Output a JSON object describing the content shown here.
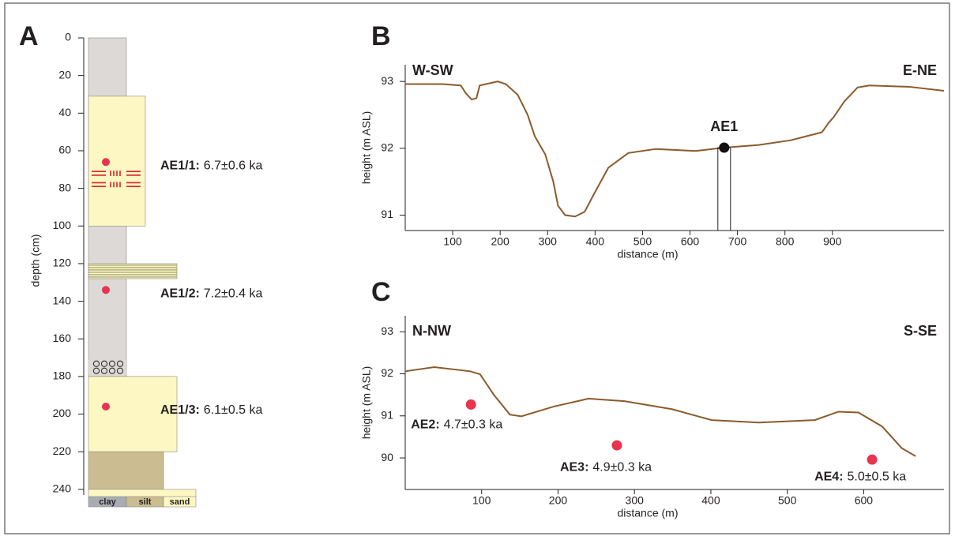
{
  "chart_data": [
    {
      "type": "column",
      "panel": "A",
      "ylabel": "depth (cm)",
      "ylim": [
        0,
        243
      ],
      "yticks": [
        0,
        20,
        40,
        60,
        80,
        100,
        120,
        140,
        160,
        180,
        200,
        220,
        240
      ],
      "layers": [
        [
          0,
          180
        ],
        [
          31,
          100
        ],
        [
          120,
          128
        ],
        [
          171,
          179
        ],
        [
          180,
          220
        ],
        [
          220,
          240
        ],
        [
          240,
          244
        ]
      ],
      "legend": [
        "clay",
        "silt",
        "sand"
      ],
      "marker_color": "#e8344e",
      "samples": [
        {
          "depth": 66,
          "name": "AE1/1:",
          "age": "6.7±0.6 ka"
        },
        {
          "depth": 134,
          "name": "AE1/2:",
          "age": "7.2±0.4 ka"
        },
        {
          "depth": 196,
          "name": "AE1/3:",
          "age": "6.1±0.5 ka"
        }
      ]
    },
    {
      "type": "line",
      "panel": "B",
      "xlabel": "distance (m)",
      "ylabel": "height (m ASL)",
      "labels": [
        "W-SW",
        "E-NE"
      ],
      "color": "#8b5a2b",
      "marker_color": "#111111",
      "xlim": [
        0,
        1135
      ],
      "ylim": [
        90.77,
        93.25
      ],
      "xticks": [
        100,
        200,
        300,
        400,
        500,
        600,
        700,
        800,
        900
      ],
      "yticks": [
        91,
        92,
        93
      ],
      "x": [
        0,
        78,
        117,
        128,
        140,
        150,
        157,
        195,
        212,
        237,
        258,
        273,
        295,
        312,
        322,
        337,
        358,
        378,
        398,
        428,
        470,
        528,
        612,
        672,
        745,
        812,
        878,
        892,
        903,
        925,
        953,
        978,
        1062,
        1135
      ],
      "values": [
        92.96,
        92.96,
        92.94,
        92.82,
        92.73,
        92.75,
        92.94,
        93.0,
        92.96,
        92.8,
        92.5,
        92.18,
        91.91,
        91.5,
        91.14,
        91.0,
        90.98,
        91.05,
        91.32,
        91.71,
        91.93,
        91.99,
        91.96,
        92.01,
        92.05,
        92.12,
        92.24,
        92.38,
        92.47,
        92.7,
        92.91,
        92.94,
        92.92,
        92.86
      ],
      "samples": [
        {
          "name": "AE1",
          "x": 672,
          "y": 92.01
        }
      ]
    },
    {
      "type": "line",
      "panel": "C",
      "xlabel": "distance (m)",
      "ylabel": "height (m ASL)",
      "labels": [
        "N-NW",
        "S-SE"
      ],
      "color": "#8b5a2b",
      "marker_color": "#e8344e",
      "xlim": [
        0,
        705
      ],
      "ylim": [
        89.25,
        93.38
      ],
      "xticks": [
        100,
        200,
        300,
        400,
        500,
        600
      ],
      "yticks": [
        90,
        91,
        92,
        93
      ],
      "x": [
        0,
        38,
        85,
        98,
        116,
        137,
        152,
        194,
        240,
        287,
        349,
        401,
        463,
        536,
        567,
        593,
        624,
        650,
        668
      ],
      "values": [
        92.06,
        92.16,
        92.06,
        91.99,
        91.5,
        91.03,
        90.99,
        91.22,
        91.41,
        91.35,
        91.16,
        90.9,
        90.84,
        90.9,
        91.1,
        91.08,
        90.75,
        90.23,
        90.04
      ],
      "samples": [
        {
          "name": "AE2:",
          "age": "4.7±0.3 ka",
          "x": 86,
          "y": 91.27
        },
        {
          "name": "AE3:",
          "age": "4.9±0.3 ka",
          "x": 277,
          "y": 90.3
        },
        {
          "name": "AE4:",
          "age": "5.0±0.5 ka",
          "x": 611,
          "y": 89.96
        }
      ]
    }
  ]
}
